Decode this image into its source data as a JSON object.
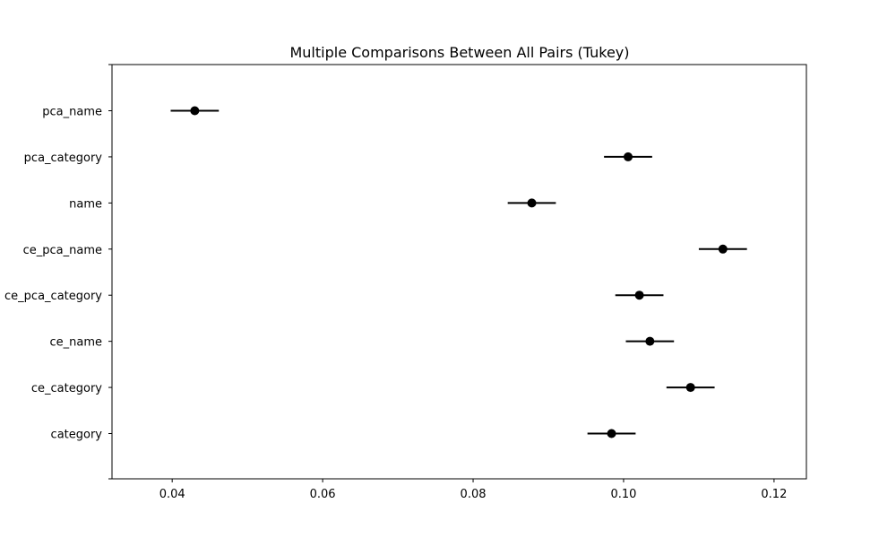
{
  "chart_data": {
    "type": "scatter",
    "title": "Multiple Comparisons Between All Pairs (Tukey)",
    "xlabel": "",
    "ylabel": "",
    "xlim": [
      0.032,
      0.1243
    ],
    "xticks": [
      0.04,
      0.06,
      0.08,
      0.1,
      0.12
    ],
    "xtick_labels": [
      "0.04",
      "0.06",
      "0.08",
      "0.10",
      "0.12"
    ],
    "grid": false,
    "groups": [
      {
        "name": "pca_name",
        "mean": 0.043,
        "lower": 0.0398,
        "upper": 0.0462
      },
      {
        "name": "pca_category",
        "mean": 0.1006,
        "lower": 0.0974,
        "upper": 0.1038
      },
      {
        "name": "name",
        "mean": 0.0878,
        "lower": 0.0846,
        "upper": 0.091
      },
      {
        "name": "ce_pca_name",
        "mean": 0.1132,
        "lower": 0.11,
        "upper": 0.1164
      },
      {
        "name": "ce_pca_category",
        "mean": 0.1021,
        "lower": 0.0989,
        "upper": 0.1053
      },
      {
        "name": "ce_name",
        "mean": 0.1035,
        "lower": 0.1003,
        "upper": 0.1067
      },
      {
        "name": "ce_category",
        "mean": 0.1089,
        "lower": 0.1057,
        "upper": 0.1121
      },
      {
        "name": "category",
        "mean": 0.0984,
        "lower": 0.0952,
        "upper": 0.1016
      }
    ]
  }
}
